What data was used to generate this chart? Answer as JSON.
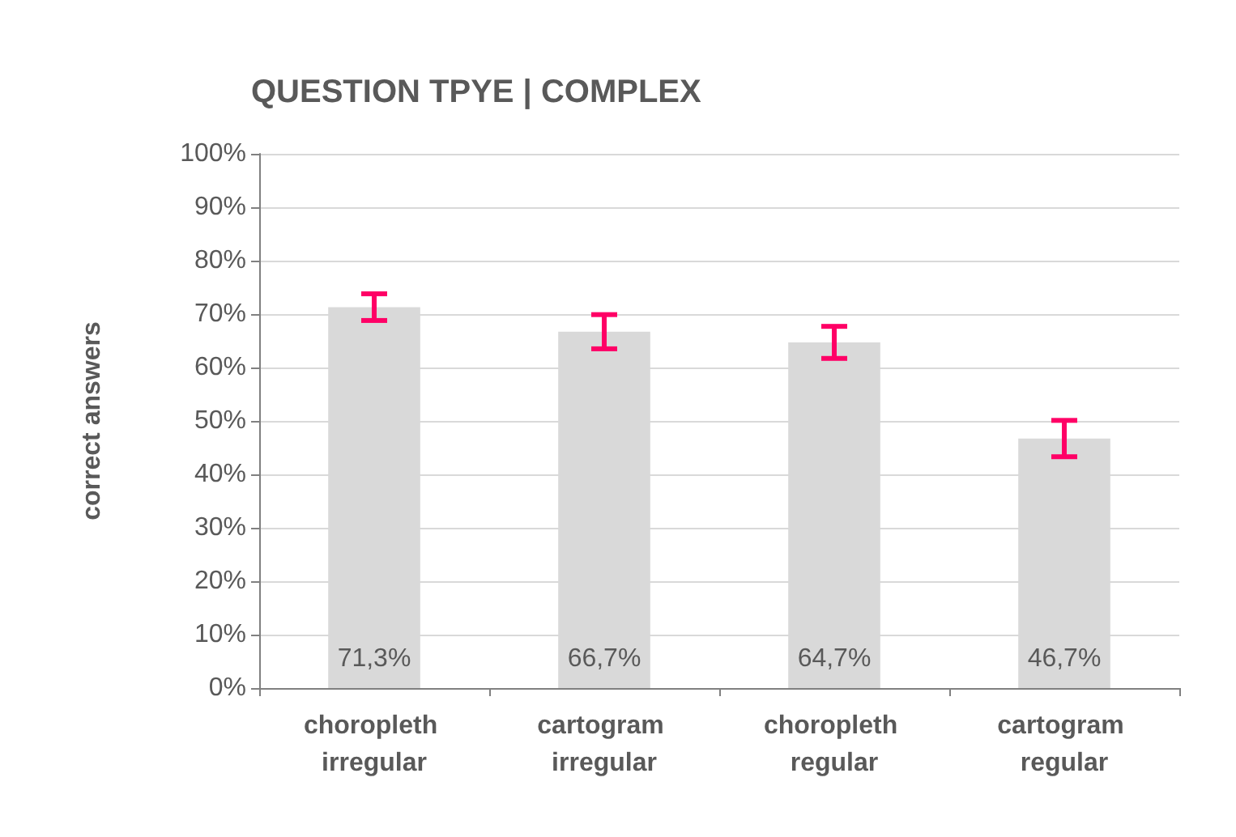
{
  "chart_data": {
    "type": "bar",
    "title": "QUESTION TPYE | COMPLEX",
    "ylabel": "correct answers",
    "categories": [
      "choropleth irregular",
      "cartogram irregular",
      "choropleth regular",
      "cartogram regular"
    ],
    "values": [
      71.3,
      66.7,
      64.7,
      46.7
    ],
    "color": "#d9d9d9",
    "errors": [
      2.5,
      3.2,
      3.0,
      3.4
    ],
    "value_labels": [
      "71,3%",
      "66,7%",
      "64,7%",
      "46,7%"
    ],
    "ylim": [
      0,
      100
    ],
    "yticks": [
      {
        "value": 0,
        "label": "0%"
      },
      {
        "value": 10,
        "label": "10%"
      },
      {
        "value": 20,
        "label": "20%"
      },
      {
        "value": 30,
        "label": "30%"
      },
      {
        "value": 40,
        "label": "40%"
      },
      {
        "value": 50,
        "label": "50%"
      },
      {
        "value": 60,
        "label": "60%"
      },
      {
        "value": 70,
        "label": "70%"
      },
      {
        "value": 80,
        "label": "80%"
      },
      {
        "value": 90,
        "label": "90%"
      },
      {
        "value": 100,
        "label": "100%"
      }
    ],
    "grid": "y"
  }
}
